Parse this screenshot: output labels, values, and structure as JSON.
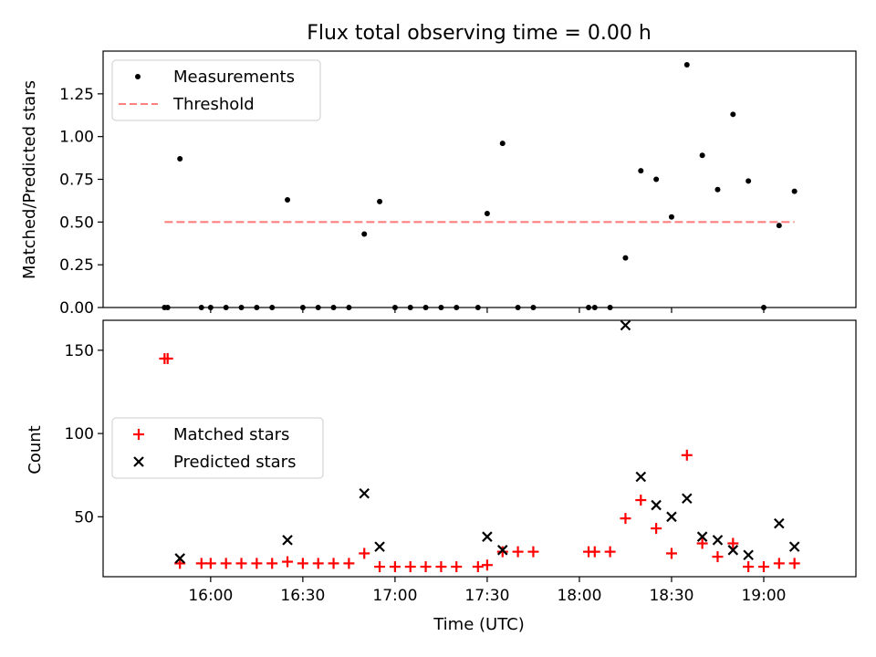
{
  "chart_data": [
    {
      "type": "scatter",
      "title": "Flux total observing time = 0.00 h",
      "xlabel": "",
      "ylabel": "Matched/Predicted stars",
      "ylim": [
        0.0,
        1.5
      ],
      "yticks": [
        "0.00",
        "0.25",
        "0.50",
        "0.75",
        "1.00",
        "1.25"
      ],
      "legend": {
        "placement": "upper left",
        "items": [
          "Measurements",
          "Threshold"
        ]
      },
      "series": [
        {
          "name": "Measurements",
          "marker": "dot",
          "color": "#000000",
          "x": [
            "15:45",
            "15:46",
            "15:50",
            "15:57",
            "16:00",
            "16:05",
            "16:10",
            "16:15",
            "16:20",
            "16:25",
            "16:30",
            "16:35",
            "16:40",
            "16:45",
            "16:50",
            "16:55",
            "17:00",
            "17:05",
            "17:10",
            "17:15",
            "17:20",
            "17:27",
            "17:30",
            "17:35",
            "17:40",
            "17:45",
            "18:03",
            "18:05",
            "18:10",
            "18:15",
            "18:20",
            "18:25",
            "18:30",
            "18:35",
            "18:40",
            "18:45",
            "18:50",
            "18:55",
            "19:00",
            "19:05",
            "19:10"
          ],
          "y": [
            0.0,
            0.0,
            0.87,
            0.0,
            0.0,
            0.0,
            0.0,
            0.0,
            0.0,
            0.63,
            0.0,
            0.0,
            0.0,
            0.0,
            0.43,
            0.62,
            0.0,
            0.0,
            0.0,
            0.0,
            0.0,
            0.0,
            0.55,
            0.96,
            0.0,
            0.0,
            0.0,
            0.0,
            0.0,
            0.29,
            0.8,
            0.75,
            0.53,
            1.42,
            0.89,
            0.69,
            1.13,
            0.74,
            0.0,
            0.48,
            0.68
          ]
        },
        {
          "name": "Threshold",
          "marker": "dashed-line",
          "color": "#ff7f7f",
          "x": [
            "15:45",
            "19:10"
          ],
          "y": [
            0.5,
            0.5
          ]
        }
      ]
    },
    {
      "type": "scatter",
      "title": "",
      "xlabel": "Time (UTC)",
      "ylabel": "Count",
      "ylim": [
        14,
        168
      ],
      "yticks": [
        "50",
        "100",
        "150"
      ],
      "xticks": [
        "16:00",
        "16:30",
        "17:00",
        "17:30",
        "18:00",
        "18:30",
        "19:00"
      ],
      "legend": {
        "placement": "center left",
        "items": [
          "Matched stars",
          "Predicted stars"
        ]
      },
      "series": [
        {
          "name": "Matched stars",
          "marker": "plus",
          "color": "#ff0000",
          "x": [
            "15:45",
            "15:46",
            "15:50",
            "15:57",
            "16:00",
            "16:05",
            "16:10",
            "16:15",
            "16:20",
            "16:25",
            "16:30",
            "16:35",
            "16:40",
            "16:45",
            "16:50",
            "16:55",
            "17:00",
            "17:05",
            "17:10",
            "17:15",
            "17:20",
            "17:27",
            "17:30",
            "17:35",
            "17:40",
            "17:45",
            "18:03",
            "18:05",
            "18:10",
            "18:15",
            "18:20",
            "18:25",
            "18:30",
            "18:35",
            "18:40",
            "18:45",
            "18:50",
            "18:55",
            "19:00",
            "19:05",
            "19:10"
          ],
          "y": [
            145,
            145,
            22,
            22,
            22,
            22,
            22,
            22,
            22,
            23,
            22,
            22,
            22,
            22,
            28,
            20,
            20,
            20,
            20,
            20,
            20,
            20,
            21,
            29,
            29,
            29,
            29,
            29,
            29,
            49,
            60,
            43,
            28,
            87,
            34,
            26,
            34,
            20,
            20,
            22,
            22
          ]
        },
        {
          "name": "Predicted stars",
          "marker": "x",
          "color": "#000000",
          "x": [
            "15:50",
            "16:25",
            "16:50",
            "16:55",
            "17:30",
            "17:35",
            "18:15",
            "18:20",
            "18:25",
            "18:30",
            "18:35",
            "18:40",
            "18:45",
            "18:50",
            "18:55",
            "19:05",
            "19:10"
          ],
          "y": [
            25,
            36,
            64,
            32,
            38,
            30,
            165,
            74,
            57,
            50,
            61,
            38,
            36,
            30,
            27,
            46,
            32
          ]
        }
      ]
    }
  ]
}
